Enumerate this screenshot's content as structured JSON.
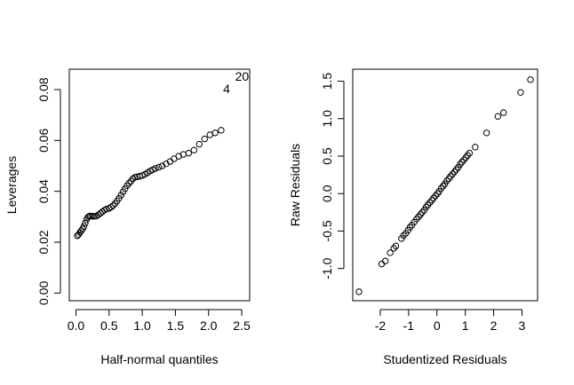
{
  "chart_data": [
    {
      "type": "scatter",
      "xlabel": "Half-normal quantiles",
      "ylabel": "Leverages",
      "xlim": [
        -0.1,
        2.62
      ],
      "ylim": [
        -0.003,
        0.088
      ],
      "xticks": [
        0.0,
        0.5,
        1.0,
        1.5,
        2.0,
        2.5
      ],
      "xtick_labels": [
        "0.0",
        "0.5",
        "1.0",
        "1.5",
        "2.0",
        "2.5"
      ],
      "yticks": [
        0.0,
        0.02,
        0.04,
        0.06,
        0.08
      ],
      "ytick_labels": [
        "0.00",
        "0.02",
        "0.04",
        "0.06",
        "0.08"
      ],
      "grid": false,
      "points": [
        [
          0.02,
          0.0225
        ],
        [
          0.04,
          0.023
        ],
        [
          0.06,
          0.0238
        ],
        [
          0.08,
          0.0245
        ],
        [
          0.1,
          0.0252
        ],
        [
          0.12,
          0.0262
        ],
        [
          0.14,
          0.0275
        ],
        [
          0.16,
          0.0288
        ],
        [
          0.18,
          0.0298
        ],
        [
          0.2,
          0.0302
        ],
        [
          0.22,
          0.0303
        ],
        [
          0.25,
          0.0302
        ],
        [
          0.28,
          0.0302
        ],
        [
          0.31,
          0.0303
        ],
        [
          0.34,
          0.0308
        ],
        [
          0.37,
          0.0314
        ],
        [
          0.4,
          0.032
        ],
        [
          0.43,
          0.0326
        ],
        [
          0.46,
          0.033
        ],
        [
          0.5,
          0.0333
        ],
        [
          0.53,
          0.0338
        ],
        [
          0.56,
          0.0344
        ],
        [
          0.59,
          0.0352
        ],
        [
          0.62,
          0.0362
        ],
        [
          0.65,
          0.0373
        ],
        [
          0.68,
          0.0385
        ],
        [
          0.71,
          0.0398
        ],
        [
          0.74,
          0.041
        ],
        [
          0.77,
          0.0422
        ],
        [
          0.8,
          0.0432
        ],
        [
          0.83,
          0.044
        ],
        [
          0.86,
          0.045
        ],
        [
          0.89,
          0.0455
        ],
        [
          0.92,
          0.0457
        ],
        [
          0.96,
          0.0459
        ],
        [
          1.0,
          0.0462
        ],
        [
          1.04,
          0.0467
        ],
        [
          1.08,
          0.0473
        ],
        [
          1.12,
          0.048
        ],
        [
          1.16,
          0.0485
        ],
        [
          1.2,
          0.049
        ],
        [
          1.25,
          0.0495
        ],
        [
          1.3,
          0.05
        ],
        [
          1.36,
          0.0508
        ],
        [
          1.42,
          0.0517
        ],
        [
          1.48,
          0.0528
        ],
        [
          1.55,
          0.0538
        ],
        [
          1.62,
          0.0545
        ],
        [
          1.7,
          0.055
        ],
        [
          1.78,
          0.0562
        ],
        [
          1.86,
          0.0585
        ],
        [
          1.94,
          0.0606
        ],
        [
          2.02,
          0.0622
        ],
        [
          2.1,
          0.063
        ],
        [
          2.19,
          0.064
        ]
      ],
      "annotations": [
        {
          "text": "4",
          "x": 2.22,
          "y": 0.0785
        },
        {
          "text": "20",
          "x": 2.4,
          "y": 0.0835
        }
      ]
    },
    {
      "type": "scatter",
      "xlabel": "Studentized Residuals",
      "ylabel": "Raw Residuals",
      "xlim": [
        -2.97,
        3.55
      ],
      "ylim": [
        -1.43,
        1.66
      ],
      "xticks": [
        -2,
        -1,
        0,
        1,
        2,
        3
      ],
      "xtick_labels": [
        "-2",
        "-1",
        "0",
        "1",
        "2",
        "3"
      ],
      "yticks": [
        -1.0,
        -0.5,
        0.0,
        0.5,
        1.0,
        1.5
      ],
      "ytick_labels": [
        "-1.0",
        "-0.5",
        "0.0",
        "0.5",
        "1.0",
        "1.5"
      ],
      "grid": false,
      "points": [
        [
          -2.75,
          -1.31
        ],
        [
          -1.95,
          -0.94
        ],
        [
          -1.82,
          -0.9
        ],
        [
          -1.65,
          -0.79
        ],
        [
          -1.52,
          -0.73
        ],
        [
          -1.45,
          -0.7
        ],
        [
          -1.25,
          -0.6
        ],
        [
          -1.18,
          -0.56
        ],
        [
          -1.1,
          -0.53
        ],
        [
          -1.02,
          -0.49
        ],
        [
          -0.95,
          -0.45
        ],
        [
          -0.88,
          -0.42
        ],
        [
          -0.8,
          -0.38
        ],
        [
          -0.72,
          -0.34
        ],
        [
          -0.65,
          -0.31
        ],
        [
          -0.58,
          -0.28
        ],
        [
          -0.52,
          -0.25
        ],
        [
          -0.45,
          -0.22
        ],
        [
          -0.38,
          -0.18
        ],
        [
          -0.32,
          -0.15
        ],
        [
          -0.25,
          -0.12
        ],
        [
          -0.18,
          -0.09
        ],
        [
          -0.12,
          -0.06
        ],
        [
          -0.05,
          -0.03
        ],
        [
          0.02,
          0.0
        ],
        [
          0.08,
          0.03
        ],
        [
          0.15,
          0.07
        ],
        [
          0.22,
          0.1
        ],
        [
          0.28,
          0.13
        ],
        [
          0.35,
          0.17
        ],
        [
          0.42,
          0.2
        ],
        [
          0.48,
          0.23
        ],
        [
          0.55,
          0.26
        ],
        [
          0.62,
          0.29
        ],
        [
          0.68,
          0.32
        ],
        [
          0.75,
          0.35
        ],
        [
          0.82,
          0.39
        ],
        [
          0.88,
          0.42
        ],
        [
          0.95,
          0.45
        ],
        [
          1.02,
          0.48
        ],
        [
          1.08,
          0.51
        ],
        [
          1.15,
          0.54
        ],
        [
          1.35,
          0.62
        ],
        [
          1.75,
          0.81
        ],
        [
          2.15,
          1.03
        ],
        [
          2.35,
          1.08
        ],
        [
          2.95,
          1.35
        ],
        [
          3.3,
          1.52
        ]
      ],
      "annotations": []
    }
  ]
}
